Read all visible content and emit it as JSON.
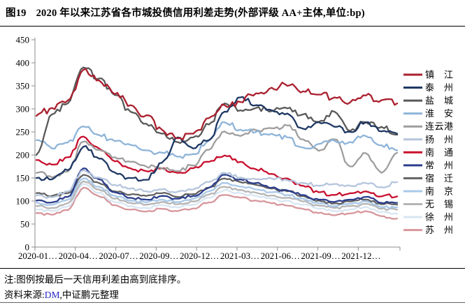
{
  "figure": {
    "title_no": "图19",
    "title_text": "2020 年以来江苏省各市城投债信用利差走势(外部评级 AA+主体,单位:bp)",
    "note": "注:图例按最后一天信用利差由高到底排序。",
    "source_prefix": "资料来源:",
    "source_link": "DM",
    "source_suffix": ",中证鹏元整理"
  },
  "colors": {
    "axis": "#8C8C8C",
    "tick_label": "#000000",
    "source_link": "#2626C9"
  },
  "chart_data": {
    "type": "line",
    "title": "",
    "xlabel": "",
    "ylabel": "",
    "unit": "bp",
    "grid": false,
    "legend_position": "right",
    "ylim": [
      0,
      450
    ],
    "y_ticks": [
      0,
      50,
      100,
      150,
      200,
      250,
      300,
      350,
      400,
      450
    ],
    "x_tick_labels": [
      "2020-01…",
      "2020-04…",
      "2020-07…",
      "2020-09…",
      "2020-12…",
      "2021-03…",
      "2021-06…",
      "2021-09…",
      "2021-12…"
    ],
    "months": [
      "2020-01",
      "2020-02",
      "2020-03",
      "2020-04",
      "2020-05",
      "2020-06",
      "2020-07",
      "2020-08",
      "2020-09",
      "2020-10",
      "2020-11",
      "2020-12",
      "2021-01",
      "2021-02",
      "2021-03",
      "2021-04",
      "2021-05",
      "2021-06",
      "2021-07",
      "2021-08",
      "2021-09",
      "2021-10",
      "2021-11",
      "2021-12"
    ],
    "series": [
      {
        "id": "zhenjiang",
        "name": "镇江",
        "color": "#AA1F2E",
        "values": [
          285,
          302,
          318,
          385,
          362,
          332,
          308,
          286,
          255,
          236,
          246,
          280,
          308,
          315,
          334,
          346,
          350,
          338,
          331,
          325,
          314,
          329,
          319,
          312
        ]
      },
      {
        "id": "taizhou",
        "name": "泰州",
        "color": "#1F3864",
        "values": [
          150,
          147,
          167,
          218,
          192,
          162,
          150,
          146,
          183,
          238,
          214,
          232,
          294,
          325,
          308,
          297,
          290,
          257,
          271,
          261,
          250,
          271,
          251,
          246
        ]
      },
      {
        "id": "yancheng",
        "name": "盐城",
        "color": "#595959",
        "values": [
          200,
          288,
          312,
          390,
          366,
          330,
          294,
          268,
          246,
          228,
          238,
          266,
          312,
          297,
          302,
          295,
          301,
          288,
          272,
          294,
          252,
          271,
          261,
          244
        ]
      },
      {
        "id": "huaian",
        "name": "淮安",
        "color": "#8EB4D8",
        "values": [
          232,
          214,
          227,
          262,
          243,
          230,
          222,
          210,
          205,
          196,
          202,
          231,
          271,
          255,
          250,
          246,
          238,
          216,
          224,
          231,
          228,
          241,
          221,
          210
        ]
      },
      {
        "id": "lianyungang",
        "name": "连云港",
        "color": "#9E9E9E",
        "values": [
          161,
          151,
          164,
          229,
          211,
          195,
          185,
          175,
          171,
          165,
          177,
          211,
          251,
          241,
          254,
          258,
          264,
          234,
          209,
          234,
          175,
          204,
          161,
          205
        ]
      },
      {
        "id": "yangzhou",
        "name": "扬州",
        "color": "#B5C5DC",
        "values": [
          112,
          108,
          121,
          167,
          151,
          135,
          127,
          121,
          125,
          120,
          125,
          141,
          161,
          151,
          147,
          149,
          145,
          139,
          133,
          137,
          133,
          139,
          130,
          141
        ]
      },
      {
        "id": "nantong",
        "name": "南通",
        "color": "#C8102E",
        "values": [
          189,
          179,
          195,
          240,
          214,
          186,
          171,
          165,
          171,
          161,
          171,
          185,
          199,
          185,
          169,
          159,
          149,
          133,
          119,
          113,
          117,
          121,
          110,
          110
        ]
      },
      {
        "id": "changzhou",
        "name": "常州",
        "color": "#2C3E8C",
        "values": [
          101,
          97,
          109,
          171,
          147,
          119,
          107,
          103,
          111,
          105,
          111,
          129,
          157,
          147,
          139,
          129,
          123,
          113,
          103,
          98,
          103,
          109,
          96,
          96
        ]
      },
      {
        "id": "suqian",
        "name": "宿迁",
        "color": "#636363",
        "values": [
          117,
          111,
          117,
          157,
          139,
          121,
          114,
          111,
          117,
          109,
          115,
          129,
          149,
          141,
          135,
          127,
          121,
          111,
          101,
          95,
          99,
          103,
          93,
          92
        ]
      },
      {
        "id": "nanjing",
        "name": "南京",
        "color": "#A8C8E8",
        "values": [
          97,
          92,
          103,
          149,
          131,
          111,
          101,
          97,
          103,
          98,
          105,
          121,
          139,
          131,
          125,
          119,
          113,
          105,
          95,
          89,
          94,
          99,
          87,
          86
        ]
      },
      {
        "id": "wuxi",
        "name": "无锡",
        "color": "#B5B5B5",
        "values": [
          89,
          85,
          95,
          143,
          125,
          105,
          96,
          92,
          98,
          93,
          99,
          114,
          131,
          124,
          118,
          112,
          107,
          99,
          90,
          85,
          89,
          94,
          83,
          81
        ]
      },
      {
        "id": "xuzhou",
        "name": "徐州",
        "color": "#D8E6F2",
        "values": [
          82,
          78,
          88,
          137,
          118,
          98,
          89,
          85,
          91,
          86,
          92,
          107,
          124,
          117,
          111,
          105,
          100,
          92,
          83,
          78,
          82,
          87,
          76,
          72
        ]
      },
      {
        "id": "suzhou",
        "name": "苏州",
        "color": "#D7969C",
        "values": [
          74,
          70,
          80,
          129,
          110,
          91,
          81,
          77,
          83,
          78,
          84,
          97,
          113,
          107,
          101,
          95,
          90,
          83,
          74,
          69,
          73,
          78,
          67,
          62
        ]
      }
    ]
  }
}
